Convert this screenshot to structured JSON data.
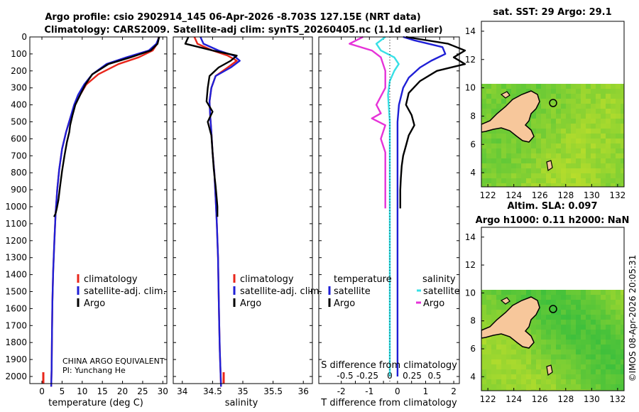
{
  "titles": {
    "line1": "Argo profile: csio 2902914_145 06-Apr-2026 -8.703S 127.15E (NRT data)",
    "line2": "Climatology: CARS2009. Satellite-adj clim: synTS_20260405.nc (1.1d earlier)",
    "sst_title": "sat. SST: 29 Argo: 29.1",
    "sla_title1": "Altim. SLA: 0.097",
    "sla_title2": "Argo h1000: 0.11 h2000: NaN",
    "timestamp": "©IMOS 08-Apr-2026 20:05:31"
  },
  "depth_ticks": [
    "0",
    "100",
    "200",
    "300",
    "400",
    "500",
    "600",
    "700",
    "800",
    "900",
    "1000",
    "1100",
    "1200",
    "1300",
    "1400",
    "1500",
    "1600",
    "1700",
    "1800",
    "1900",
    "2000"
  ],
  "colors": {
    "climatology": "#e8261b",
    "satellite": "#1f1fd6",
    "argo": "#000000",
    "sal_sat": "#37e0e6",
    "sal_argo": "#e632d8",
    "land": "#f7c79b",
    "sea_hi": "#c4e02a",
    "sea_lo": "#3cbf3c"
  },
  "chart_data": [
    {
      "type": "line",
      "name": "temperature",
      "xlabel": "temperature (deg C)",
      "xticks": [
        "0",
        "5",
        "10",
        "15",
        "20",
        "25",
        "30"
      ],
      "xlim": [
        -3,
        31
      ],
      "ylim": [
        0,
        2060
      ],
      "legend": [
        "climatology",
        "satellite-adj. clim.",
        "Argo"
      ],
      "annotation1": "CHINA ARGO EQUIVALENT",
      "annotation2": "PI: Yunchang He",
      "series": [
        {
          "name": "climatology",
          "color": "#e8261b",
          "x": [
            29.0,
            28.6,
            27.5,
            24.0,
            19.0,
            14.0,
            11.0,
            9.5,
            8.2,
            7.0,
            6.0,
            5.0,
            4.3,
            3.8,
            3.4,
            3.1,
            2.8,
            2.6,
            2.5,
            2.4,
            2.3
          ],
          "y": [
            0,
            40,
            80,
            120,
            160,
            220,
            280,
            340,
            400,
            480,
            560,
            660,
            780,
            900,
            1040,
            1200,
            1380,
            1560,
            1760,
            1960,
            2060
          ]
        },
        {
          "name": "satellite-adj. clim.",
          "color": "#1f1fd6",
          "x": [
            29.1,
            28.4,
            26.5,
            21.0,
            16.0,
            12.5,
            10.5,
            9.0,
            8.0,
            7.0,
            6.0,
            5.0,
            4.3,
            3.8,
            3.4,
            3.1,
            2.8,
            2.6,
            2.5,
            2.4,
            2.3
          ],
          "y": [
            0,
            40,
            80,
            120,
            160,
            220,
            280,
            340,
            400,
            480,
            560,
            660,
            780,
            900,
            1040,
            1200,
            1380,
            1560,
            1760,
            1960,
            2060
          ]
        },
        {
          "name": "Argo",
          "color": "#000000",
          "x": [
            29.1,
            28.7,
            27.0,
            22.0,
            16.5,
            12.5,
            10.8,
            9.5,
            8.3,
            7.6,
            7.0,
            6.8,
            6.2,
            5.6,
            5.0,
            4.5,
            4.1,
            3.7,
            3.4,
            3.2,
            3.0
          ],
          "y": [
            0,
            40,
            80,
            120,
            160,
            220,
            280,
            340,
            400,
            460,
            520,
            560,
            620,
            700,
            790,
            880,
            960,
            1010,
            1040,
            1050,
            1060
          ]
        }
      ]
    },
    {
      "type": "line",
      "name": "salinity",
      "xlabel": "salinity",
      "xticks": [
        "34",
        "34.5",
        "35",
        "35.5",
        "36"
      ],
      "xlim": [
        33.85,
        36.15
      ],
      "ylim": [
        0,
        2060
      ],
      "legend": [
        "climatology",
        "satellite-adj. clim.",
        "Argo"
      ],
      "series": [
        {
          "name": "climatology",
          "color": "#e8261b",
          "x": [
            34.2,
            34.25,
            34.5,
            34.75,
            34.9,
            34.75,
            34.55,
            34.48,
            34.45,
            34.46,
            34.48,
            34.5,
            34.53,
            34.55,
            34.57,
            34.59,
            34.6,
            34.61,
            34.62,
            34.63,
            34.64
          ],
          "y": [
            0,
            40,
            80,
            110,
            140,
            180,
            230,
            300,
            380,
            460,
            560,
            680,
            800,
            950,
            1100,
            1300,
            1500,
            1700,
            1850,
            1960,
            2060
          ]
        },
        {
          "name": "satellite-adj. clim.",
          "color": "#1f1fd6",
          "x": [
            34.3,
            34.35,
            34.6,
            34.85,
            34.95,
            34.8,
            34.55,
            34.48,
            34.45,
            34.46,
            34.48,
            34.5,
            34.53,
            34.55,
            34.57,
            34.59,
            34.6,
            34.61,
            34.62,
            34.63,
            34.64
          ],
          "y": [
            0,
            40,
            80,
            110,
            140,
            180,
            230,
            300,
            380,
            460,
            560,
            680,
            800,
            950,
            1100,
            1300,
            1500,
            1700,
            1850,
            1960,
            2060
          ]
        },
        {
          "name": "Argo",
          "color": "#000000",
          "x": [
            34.1,
            34.05,
            34.5,
            34.9,
            34.8,
            34.6,
            34.45,
            34.42,
            34.4,
            34.5,
            34.42,
            34.48,
            34.5,
            34.52,
            34.55,
            34.57,
            34.58,
            34.58,
            34.58,
            34.58,
            34.58
          ],
          "y": [
            0,
            40,
            80,
            110,
            140,
            180,
            230,
            300,
            380,
            440,
            500,
            580,
            680,
            780,
            880,
            960,
            1000,
            1010,
            1030,
            1045,
            1060
          ]
        }
      ]
    },
    {
      "type": "line",
      "name": "difference",
      "xlabel": "T difference from climatology",
      "sublabel": "S difference from climatology",
      "xticks": [
        "-2",
        "-1.5",
        "-1",
        "-0.5",
        "0",
        "0.5",
        "1",
        "1.5",
        "2"
      ],
      "xticks_visible": [
        "-2",
        "-1",
        "0",
        "1",
        "2"
      ],
      "sticks": [
        "-0.5",
        "-0.25",
        "0",
        "0.25",
        "0.5"
      ],
      "xlim": [
        -2.8,
        2.2
      ],
      "ylim": [
        0,
        2060
      ],
      "legend_t_title": "temperature",
      "legend_s_title": "salinity",
      "legend_t": [
        "satellite",
        "Argo"
      ],
      "legend_s": [
        "satellite",
        "Argo"
      ],
      "series": [
        {
          "name": "T satellite",
          "color": "#1f1fd6",
          "x": [
            0.2,
            0.6,
            1.6,
            1.7,
            1.2,
            0.8,
            0.4,
            0.2,
            0.05,
            0.0,
            0.0,
            0.0,
            0.0,
            0.0,
            0.0,
            0.0,
            0.0,
            0.0,
            0.0
          ],
          "y": [
            0,
            20,
            60,
            100,
            140,
            180,
            240,
            300,
            400,
            500,
            600,
            700,
            800,
            1000,
            1200,
            1400,
            1600,
            1800,
            2000
          ]
        },
        {
          "name": "T Argo",
          "color": "#000000",
          "x": [
            0.3,
            1.8,
            2.4,
            2.0,
            2.4,
            1.4,
            0.8,
            0.4,
            0.3,
            0.5,
            0.6,
            0.4,
            0.3,
            0.2,
            0.15,
            0.12,
            0.1,
            0.1
          ],
          "y": [
            0,
            40,
            80,
            120,
            160,
            200,
            260,
            330,
            400,
            460,
            520,
            580,
            640,
            700,
            760,
            830,
            900,
            1010
          ]
        },
        {
          "name": "S satellite",
          "color": "#37e0e6",
          "x": [
            -0.05,
            -0.15,
            -0.1,
            0.05,
            0.1,
            0.05,
            0.0,
            -0.02,
            -0.01,
            0.0,
            0.0,
            0.0,
            0.0,
            0.0,
            0.0,
            0.0,
            0.0,
            0.0
          ],
          "y": [
            0,
            40,
            80,
            120,
            160,
            200,
            260,
            340,
            420,
            500,
            600,
            700,
            800,
            1000,
            1200,
            1400,
            1600,
            2000
          ]
        },
        {
          "name": "S Argo",
          "color": "#e632d8",
          "x": [
            -0.3,
            -0.45,
            -0.2,
            -0.1,
            -0.05,
            -0.05,
            -0.15,
            -0.1,
            -0.2,
            -0.05,
            -0.1,
            -0.05,
            -0.05,
            -0.05,
            -0.05,
            -0.05
          ],
          "y": [
            0,
            40,
            80,
            120,
            200,
            300,
            400,
            450,
            480,
            520,
            600,
            680,
            760,
            840,
            920,
            1010
          ]
        }
      ]
    },
    {
      "type": "heatmap",
      "name": "sst-map",
      "xticks": [
        "122",
        "124",
        "126",
        "128",
        "130",
        "132"
      ],
      "yticks": [
        "4",
        "6",
        "8",
        "10",
        "12",
        "14"
      ],
      "xlim": [
        121.5,
        132.5
      ],
      "ylim": [
        3,
        14.7
      ]
    },
    {
      "type": "heatmap",
      "name": "sla-map",
      "xticks": [
        "122",
        "124",
        "126",
        "128",
        "130",
        "132"
      ],
      "yticks": [
        "4",
        "6",
        "8",
        "10",
        "12",
        "14"
      ],
      "xlim": [
        121.5,
        132.5
      ],
      "ylim": [
        3,
        14.7
      ]
    }
  ]
}
